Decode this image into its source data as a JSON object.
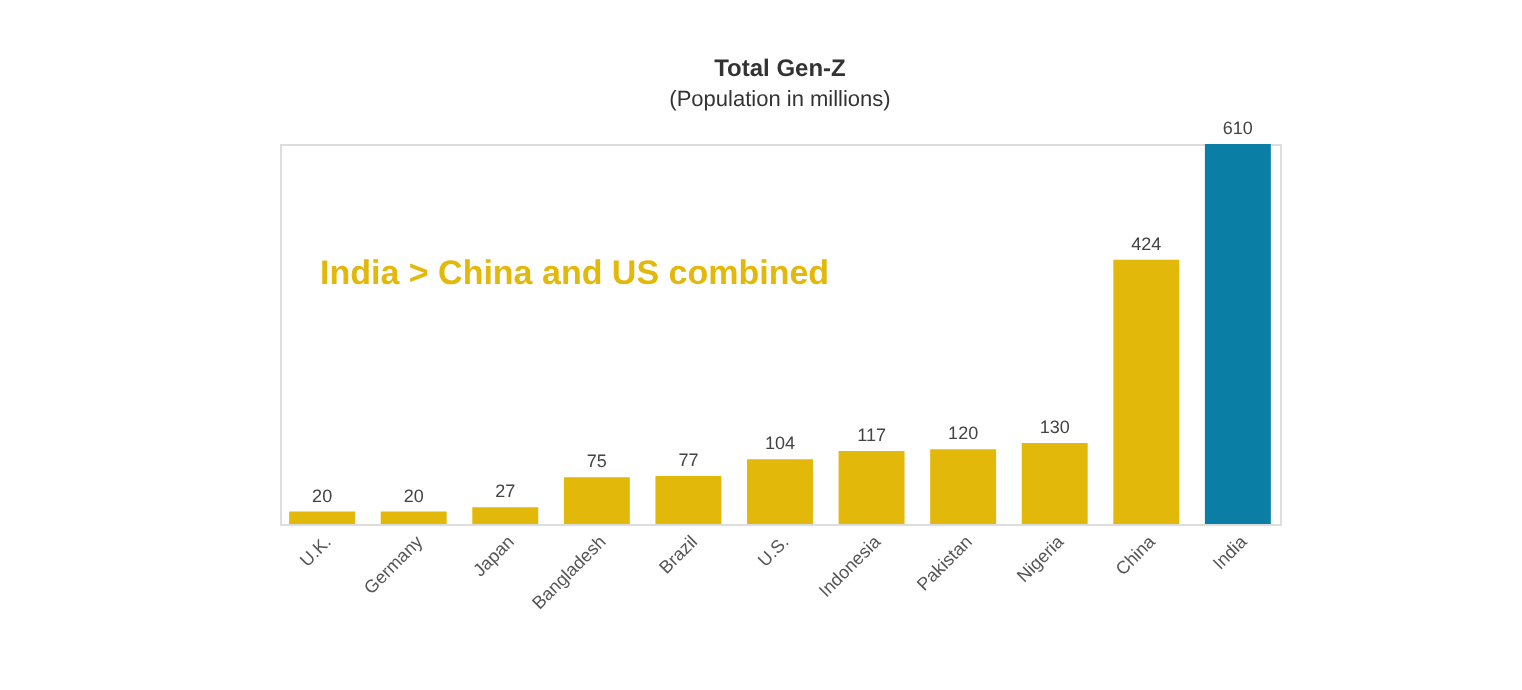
{
  "chart_data": {
    "type": "bar",
    "title": "Total Gen-Z",
    "subtitle": "(Population in millions)",
    "categories": [
      "U.K.",
      "Germany",
      "Japan",
      "Bangladesh",
      "Brazil",
      "U.S.",
      "Indonesia",
      "Pakistan",
      "Nigeria",
      "China",
      "India"
    ],
    "values": [
      20,
      20,
      27,
      75,
      77,
      104,
      117,
      120,
      130,
      424,
      610
    ],
    "colors": [
      "#e2b80a",
      "#e2b80a",
      "#e2b80a",
      "#e2b80a",
      "#e2b80a",
      "#e2b80a",
      "#e2b80a",
      "#e2b80a",
      "#e2b80a",
      "#e2b80a",
      "#0a7ea4"
    ],
    "data_labels": true,
    "annotations": [
      "India > China and US combined"
    ]
  }
}
